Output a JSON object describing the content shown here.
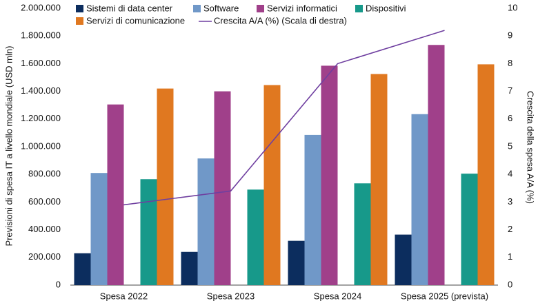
{
  "chart_data": {
    "type": "bar",
    "y_label": "Previsioni di spesa IT a livello mondiale (USD mln)",
    "y2_label": "Crescita della spesa A/A (%)",
    "categories": [
      "Spesa 2022",
      "Spesa 2023",
      "Spesa 2024",
      "Spesa 2025 (prevista)"
    ],
    "series": [
      {
        "name": "Sistemi di data center",
        "color": "#0c2d5e",
        "values": [
          230000,
          240000,
          320000,
          365000
        ]
      },
      {
        "name": "Software",
        "color": "#7098c8",
        "values": [
          810000,
          915000,
          1085000,
          1235000
        ]
      },
      {
        "name": "Servizi informatici",
        "color": "#a0408a",
        "values": [
          1305000,
          1400000,
          1585000,
          1735000
        ]
      },
      {
        "name": "Dispositivi",
        "color": "#17998a",
        "values": [
          765000,
          690000,
          735000,
          805000
        ]
      },
      {
        "name": "Servizi di comunicazione",
        "color": "#e07820",
        "values": [
          1420000,
          1445000,
          1525000,
          1595000
        ]
      },
      {
        "name": "Crescita A/A (%) (Scala di destra)",
        "color": "#6f3fa0",
        "type": "line",
        "axis": "y2",
        "values": [
          2.9,
          3.4,
          8.0,
          9.2
        ]
      }
    ],
    "ylim": [
      0,
      2000000
    ],
    "yticks": [
      0,
      {
        "value": 200000,
        "label": "200.000"
      },
      {
        "value": 400000,
        "label": "400.000"
      },
      {
        "value": 600000,
        "label": "600.000"
      },
      {
        "value": 800000,
        "label": "800.000"
      },
      {
        "value": 1000000,
        "label": "1.000.000"
      },
      {
        "value": 1200000,
        "label": "1.200.000"
      },
      {
        "value": 1400000,
        "label": "1.400.000"
      },
      {
        "value": 1600000,
        "label": "1.600.000"
      },
      {
        "value": 1800000,
        "label": "1.800.000"
      },
      {
        "value": 2000000,
        "label": "2.000.000"
      }
    ],
    "y2lim": [
      0,
      10
    ],
    "y2ticks": [
      0,
      1,
      2,
      3,
      4,
      5,
      6,
      7,
      8,
      9,
      10
    ]
  }
}
